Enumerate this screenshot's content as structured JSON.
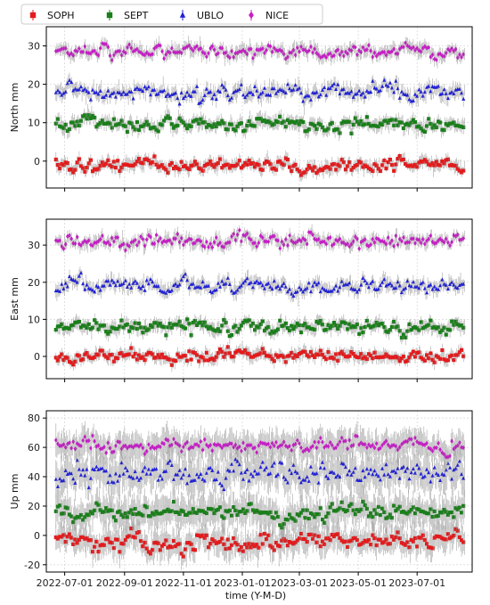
{
  "chart_data": {
    "type": "scatter",
    "legend": {
      "placement": "top-left",
      "entries": [
        {
          "name": "SOPH",
          "color": "#e41a1c",
          "marker": "square"
        },
        {
          "name": "SEPT",
          "color": "#1a7f1a",
          "marker": "square"
        },
        {
          "name": "UBLO",
          "color": "#1f1fd6",
          "marker": "triangle"
        },
        {
          "name": "NICE",
          "color": "#c41ec4",
          "marker": "diamond"
        }
      ]
    },
    "xlabel": "time (Y-M-D)",
    "x_ticks": [
      "2022-07-01",
      "2022-09-01",
      "2022-11-01",
      "2023-01-01",
      "2023-03-01",
      "2023-05-01",
      "2023-07-01"
    ],
    "x_range": [
      "2022-06-12",
      "2023-08-27"
    ],
    "grid": true,
    "errorbar_color": "#8a8a8a",
    "panels": [
      {
        "ylabel": "North mm",
        "ylim": [
          -7,
          35
        ],
        "yticks": [
          0,
          10,
          20,
          30
        ],
        "series": [
          {
            "name": "SOPH",
            "mean": -1,
            "noise": 0.9,
            "err": 1.4
          },
          {
            "name": "SEPT",
            "mean": 9.5,
            "noise": 1.0,
            "err": 1.5
          },
          {
            "name": "UBLO",
            "mean": 18,
            "noise": 1.1,
            "err": 1.6
          },
          {
            "name": "NICE",
            "mean": 28.5,
            "noise": 0.9,
            "err": 1.5
          }
        ]
      },
      {
        "ylabel": "East mm",
        "ylim": [
          -6,
          37
        ],
        "yticks": [
          0,
          10,
          20,
          30
        ],
        "series": [
          {
            "name": "SOPH",
            "mean": 0,
            "noise": 0.9,
            "err": 1.4
          },
          {
            "name": "SEPT",
            "mean": 8,
            "noise": 0.9,
            "err": 1.5
          },
          {
            "name": "UBLO",
            "mean": 19,
            "noise": 1.0,
            "err": 1.6
          },
          {
            "name": "NICE",
            "mean": 31,
            "noise": 1.0,
            "err": 1.5
          }
        ]
      },
      {
        "ylabel": "Up mm",
        "ylim": [
          -25,
          85
        ],
        "yticks": [
          -20,
          0,
          20,
          40,
          60,
          80
        ],
        "series": [
          {
            "name": "SOPH",
            "mean": -4,
            "noise": 3.0,
            "err": 8
          },
          {
            "name": "SEPT",
            "mean": 16,
            "noise": 3.0,
            "err": 9
          },
          {
            "name": "UBLO",
            "mean": 42,
            "noise": 4.0,
            "err": 10
          },
          {
            "name": "NICE",
            "mean": 62,
            "noise": 2.5,
            "err": 8
          }
        ]
      }
    ]
  }
}
